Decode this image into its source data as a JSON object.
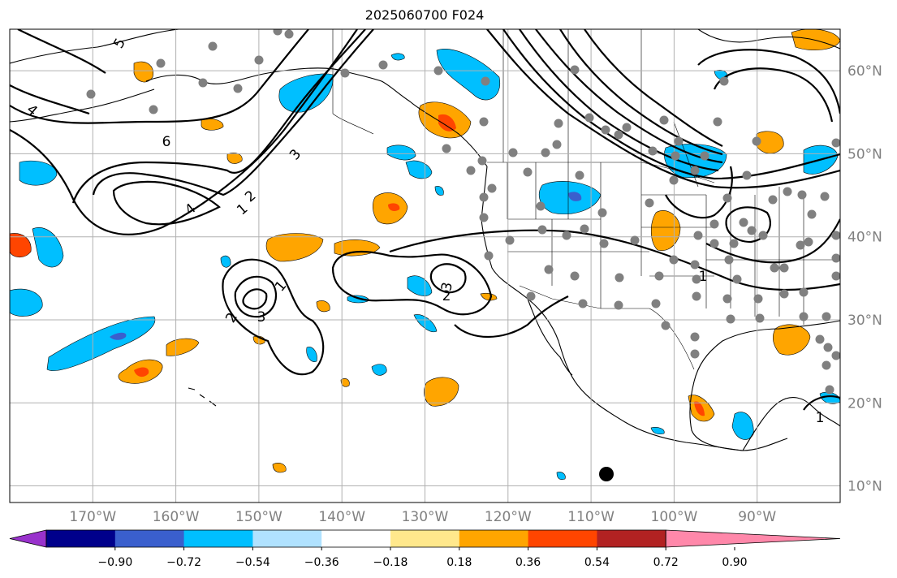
{
  "title": "2025060700 F024",
  "map": {
    "lon_range": [
      -180,
      -80
    ],
    "lat_range": [
      8,
      65
    ],
    "lon_ticks": [
      -170,
      -160,
      -150,
      -140,
      -130,
      -120,
      -110,
      -100,
      -90
    ],
    "lon_tick_labels": [
      "170°W",
      "160°W",
      "150°W",
      "140°W",
      "130°W",
      "120°W",
      "110°W",
      "100°W",
      "90°W"
    ],
    "lat_ticks": [
      10,
      20,
      30,
      40,
      50,
      60
    ],
    "lat_tick_labels": [
      "10°N",
      "20°N",
      "30°N",
      "40°N",
      "50°N",
      "60°N"
    ],
    "grid": true,
    "colors": {
      "axis_label": "#808080",
      "contour": "#000000",
      "station_marker": "#808080",
      "grid": "#b0b0b0"
    }
  },
  "contour_labels": [
    "6",
    "5",
    "4",
    "3",
    "2",
    "1",
    "3",
    "2",
    "1",
    "3",
    "2",
    "1",
    "4",
    "1"
  ],
  "colorbar": {
    "levels": [
      -0.9,
      -0.72,
      -0.54,
      -0.36,
      -0.18,
      0.18,
      0.36,
      0.54,
      0.72,
      0.9
    ],
    "tick_labels": [
      "−0.90",
      "−0.72",
      "−0.54",
      "−0.36",
      "−0.18",
      "0.18",
      "0.36",
      "0.54",
      "0.72",
      "0.90"
    ],
    "colors": [
      "#9932cc",
      "#00008b",
      "#3a5fcd",
      "#00bfff",
      "#b0e2ff",
      "#ffffff",
      "#ffe88c",
      "#ffa500",
      "#ff4500",
      "#b22222",
      "#ff88aa"
    ]
  }
}
